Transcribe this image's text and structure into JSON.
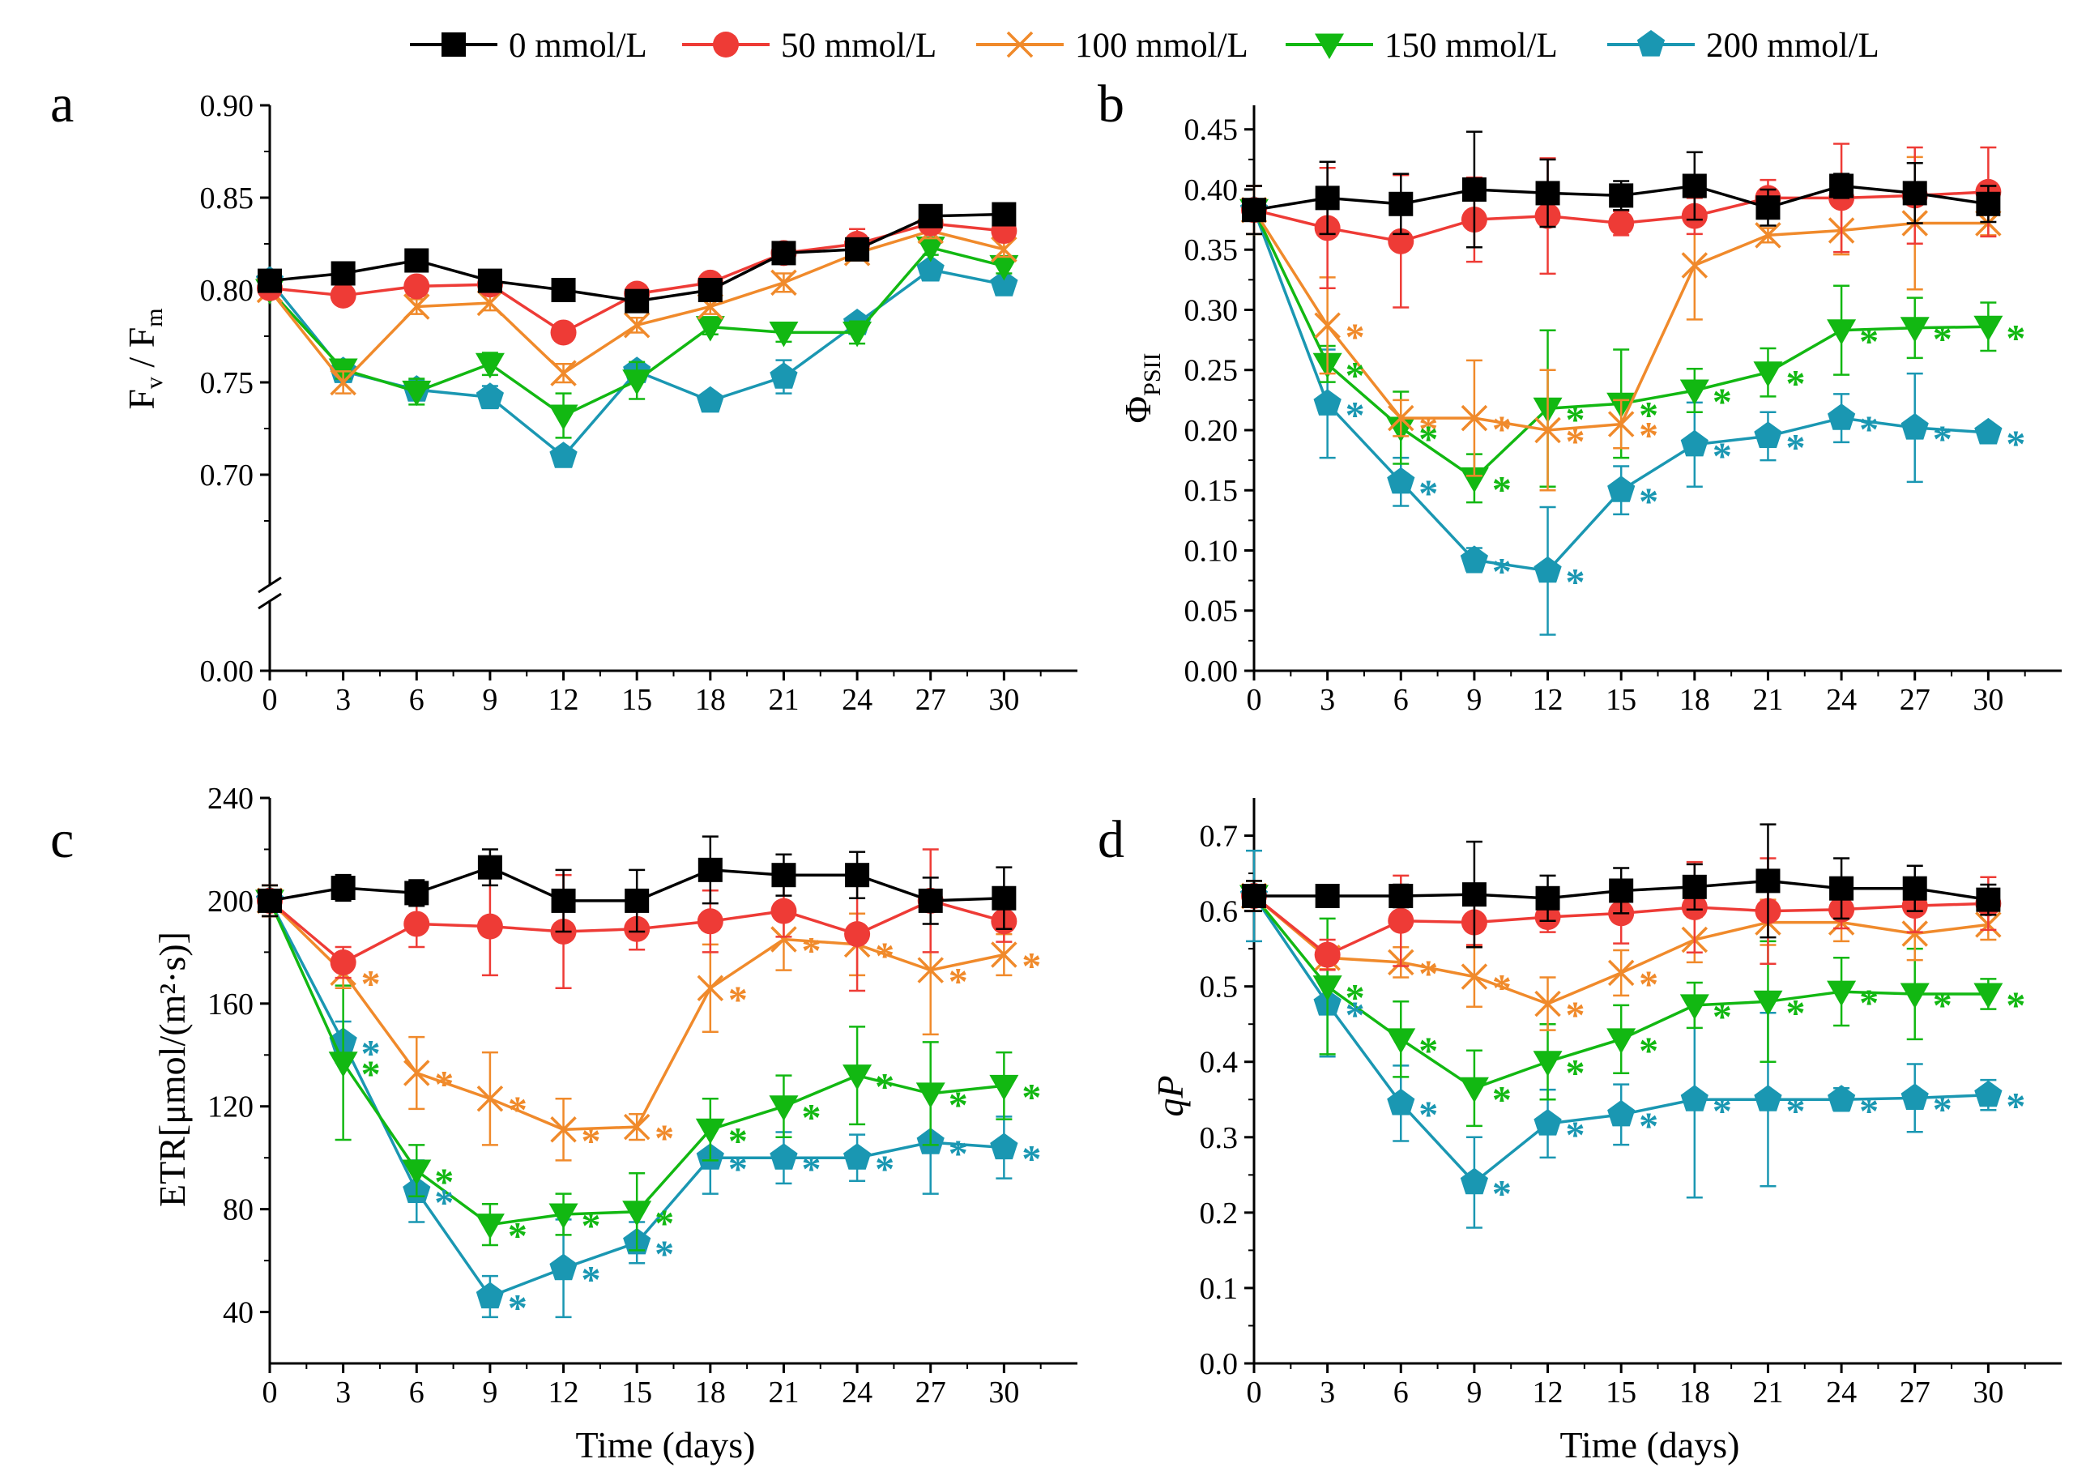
{
  "legend": [
    {
      "label": "0 mmol/L",
      "color": "#000000",
      "marker": "square"
    },
    {
      "label": "50 mmol/L",
      "color": "#ee3b36",
      "marker": "circle"
    },
    {
      "label": "100 mmol/L",
      "color": "#f08a2b",
      "marker": "cross"
    },
    {
      "label": "150 mmol/L",
      "color": "#12b812",
      "marker": "triangle-down"
    },
    {
      "label": "200 mmol/L",
      "color": "#1a97b2",
      "marker": "pentagon"
    }
  ],
  "chart_data": [
    {
      "panel": "a",
      "type": "line",
      "ylabel_main": "F",
      "ylabel_sub1": "v",
      "ylabel_mid": " / F",
      "ylabel_sub2": "m",
      "xlabel": "",
      "x": [
        0,
        3,
        6,
        9,
        12,
        15,
        18,
        21,
        24,
        27,
        30
      ],
      "ylim": [
        0.65,
        0.9
      ],
      "yticks": [
        "0.90",
        "0.85",
        "0.80",
        "0.75",
        "0.70"
      ],
      "ytick_values": [
        0.9,
        0.85,
        0.8,
        0.75,
        0.7
      ],
      "ybreak_label": "0.00",
      "xticks": [
        "0",
        "3",
        "6",
        "9",
        "12",
        "15",
        "18",
        "21",
        "24",
        "27",
        "30"
      ],
      "series": [
        {
          "name": "0 mmol/L",
          "values": [
            0.805,
            0.809,
            0.816,
            0.805,
            0.8,
            0.794,
            0.8,
            0.82,
            0.822,
            0.84,
            0.841
          ],
          "errors": [
            0.003,
            0.003,
            0.003,
            0.004,
            0.004,
            0.003,
            0.004,
            0.004,
            0.004,
            0.003,
            0.003
          ]
        },
        {
          "name": "50 mmol/L",
          "values": [
            0.801,
            0.797,
            0.802,
            0.803,
            0.777,
            0.798,
            0.804,
            0.82,
            0.825,
            0.836,
            0.832
          ],
          "errors": [
            0.003,
            0.004,
            0.004,
            0.004,
            0.004,
            0.004,
            0.004,
            0.004,
            0.008,
            0.004,
            0.004
          ]
        },
        {
          "name": "100 mmol/L",
          "values": [
            0.8,
            0.75,
            0.791,
            0.793,
            0.755,
            0.781,
            0.791,
            0.804,
            0.82,
            0.832,
            0.822
          ],
          "errors": [
            0.003,
            0.006,
            0.004,
            0.004,
            0.005,
            0.004,
            0.004,
            0.005,
            0.004,
            0.004,
            0.004
          ]
        },
        {
          "name": "150 mmol/L",
          "values": [
            0.8,
            0.757,
            0.745,
            0.76,
            0.732,
            0.751,
            0.78,
            0.777,
            0.777,
            0.823,
            0.813
          ],
          "errors": [
            0.003,
            0.005,
            0.007,
            0.006,
            0.012,
            0.01,
            0.004,
            0.005,
            0.006,
            0.004,
            0.004
          ]
        },
        {
          "name": "200 mmol/L",
          "values": [
            0.805,
            0.756,
            0.746,
            0.742,
            0.71,
            0.756,
            0.74,
            0.753,
            0.782,
            0.811,
            0.803
          ],
          "errors": [
            0.003,
            0.005,
            0.005,
            0.006,
            0.004,
            0.004,
            0.003,
            0.009,
            0.004,
            0.004,
            0.004
          ]
        }
      ],
      "significant": []
    },
    {
      "panel": "b",
      "type": "line",
      "ylabel_main": "Φ",
      "ylabel_sub1": "PSII",
      "xlabel": "",
      "x": [
        0,
        3,
        6,
        9,
        12,
        15,
        18,
        21,
        24,
        27,
        30
      ],
      "ylim": [
        0,
        0.47
      ],
      "yticks": [
        "0.00",
        "0.05",
        "0.10",
        "0.15",
        "0.20",
        "0.25",
        "0.30",
        "0.35",
        "0.40",
        "0.45"
      ],
      "ytick_values": [
        0.0,
        0.05,
        0.1,
        0.15,
        0.2,
        0.25,
        0.3,
        0.35,
        0.4,
        0.45
      ],
      "xticks": [
        "0",
        "3",
        "6",
        "9",
        "12",
        "15",
        "18",
        "21",
        "24",
        "27",
        "30"
      ],
      "series": [
        {
          "name": "0 mmol/L",
          "values": [
            0.383,
            0.393,
            0.388,
            0.4,
            0.397,
            0.395,
            0.403,
            0.385,
            0.403,
            0.397,
            0.388
          ],
          "errors": [
            0.02,
            0.03,
            0.025,
            0.048,
            0.028,
            0.012,
            0.028,
            0.015,
            0.01,
            0.025,
            0.015
          ]
        },
        {
          "name": "50 mmol/L",
          "values": [
            0.383,
            0.368,
            0.357,
            0.375,
            0.378,
            0.372,
            0.378,
            0.393,
            0.393,
            0.395,
            0.398
          ],
          "errors": [
            0.02,
            0.05,
            0.055,
            0.035,
            0.048,
            0.01,
            0.015,
            0.015,
            0.045,
            0.04,
            0.037
          ]
        },
        {
          "name": "100 mmol/L",
          "values": [
            0.383,
            0.287,
            0.21,
            0.21,
            0.2,
            0.205,
            0.337,
            0.362,
            0.366,
            0.372,
            0.372
          ],
          "errors": [
            0.02,
            0.04,
            0.015,
            0.048,
            0.05,
            0.02,
            0.045,
            0.006,
            0.02,
            0.055,
            0.01
          ]
        },
        {
          "name": "150 mmol/L",
          "values": [
            0.383,
            0.255,
            0.202,
            0.16,
            0.218,
            0.222,
            0.233,
            0.248,
            0.283,
            0.285,
            0.286
          ],
          "errors": [
            0.02,
            0.015,
            0.03,
            0.02,
            0.065,
            0.045,
            0.018,
            0.02,
            0.037,
            0.025,
            0.02
          ]
        },
        {
          "name": "200 mmol/L",
          "values": [
            0.383,
            0.222,
            0.157,
            0.092,
            0.083,
            0.15,
            0.188,
            0.195,
            0.21,
            0.202,
            0.198
          ],
          "errors": [
            0.02,
            0.045,
            0.02,
            0.01,
            0.053,
            0.02,
            0.035,
            0.02,
            0.02,
            0.045,
            0.005
          ]
        }
      ],
      "significant": [
        {
          "series": 2,
          "x": [
            3,
            6,
            9,
            12,
            15
          ]
        },
        {
          "series": 3,
          "x": [
            3,
            6,
            9,
            12,
            15,
            18,
            21,
            24,
            27,
            30
          ]
        },
        {
          "series": 4,
          "x": [
            3,
            6,
            9,
            12,
            15,
            18,
            21,
            24,
            27,
            30
          ]
        }
      ]
    },
    {
      "panel": "c",
      "type": "line",
      "ylabel_main": "ETR[μmol/(m²·s)]",
      "xlabel": "Time (days)",
      "x": [
        0,
        3,
        6,
        9,
        12,
        15,
        18,
        21,
        24,
        27,
        30
      ],
      "ylim": [
        20,
        240
      ],
      "yticks": [
        "40",
        "80",
        "120",
        "160",
        "200",
        "240"
      ],
      "ytick_values": [
        40,
        80,
        120,
        160,
        200,
        240
      ],
      "xticks": [
        "0",
        "3",
        "6",
        "9",
        "12",
        "15",
        "18",
        "21",
        "24",
        "27",
        "30"
      ],
      "series": [
        {
          "name": "0 mmol/L",
          "values": [
            200,
            205,
            203,
            213,
            200,
            200,
            212,
            210,
            210,
            200,
            201
          ],
          "errors": [
            6,
            5,
            5,
            7,
            12,
            12,
            13,
            8,
            9,
            9,
            12
          ]
        },
        {
          "name": "50 mmol/L",
          "values": [
            200,
            176,
            191,
            190,
            188,
            189,
            192,
            196,
            187,
            200,
            192
          ],
          "errors": [
            6,
            6,
            9,
            19,
            22,
            8,
            12,
            10,
            22,
            20,
            8
          ]
        },
        {
          "name": "100 mmol/L",
          "values": [
            200,
            172,
            133,
            123,
            111,
            112,
            166,
            185,
            183,
            173,
            179
          ],
          "errors": [
            6,
            6,
            14,
            18,
            12,
            5,
            17,
            12,
            12,
            25,
            8
          ]
        },
        {
          "name": "150 mmol/L",
          "values": [
            200,
            137,
            95,
            74,
            78,
            79,
            111,
            120,
            132,
            125,
            128
          ],
          "errors": [
            6,
            30,
            10,
            8,
            8,
            15,
            12,
            12,
            19,
            20,
            13
          ]
        },
        {
          "name": "200 mmol/L",
          "values": [
            200,
            145,
            87,
            46,
            57,
            67,
            100,
            100,
            100,
            106,
            104
          ],
          "errors": [
            6,
            8,
            12,
            8,
            19,
            8,
            14,
            10,
            9,
            20,
            12
          ]
        }
      ],
      "significant": [
        {
          "series": 2,
          "x": [
            3,
            6,
            9,
            12,
            15,
            18,
            21,
            24,
            27,
            30
          ]
        },
        {
          "series": 3,
          "x": [
            3,
            6,
            9,
            12,
            15,
            18,
            21,
            24,
            27,
            30
          ]
        },
        {
          "series": 4,
          "x": [
            3,
            6,
            9,
            12,
            15,
            18,
            21,
            24,
            27,
            30
          ]
        }
      ]
    },
    {
      "panel": "d",
      "type": "line",
      "ylabel_main": "qP",
      "xlabel": "Time (days)",
      "x": [
        0,
        3,
        6,
        9,
        12,
        15,
        18,
        21,
        24,
        27,
        30
      ],
      "ylim": [
        0,
        0.75
      ],
      "yticks": [
        "0.0",
        "0.1",
        "0.2",
        "0.3",
        "0.4",
        "0.5",
        "0.6",
        "0.7"
      ],
      "ytick_values": [
        0.0,
        0.1,
        0.2,
        0.3,
        0.4,
        0.5,
        0.6,
        0.7
      ],
      "xticks": [
        "0",
        "3",
        "6",
        "9",
        "12",
        "15",
        "18",
        "21",
        "24",
        "27",
        "30"
      ],
      "series": [
        {
          "name": "0 mmol/L",
          "values": [
            0.62,
            0.62,
            0.62,
            0.622,
            0.617,
            0.627,
            0.632,
            0.64,
            0.63,
            0.63,
            0.615
          ],
          "errors": [
            0.02,
            0.01,
            0.015,
            0.07,
            0.03,
            0.03,
            0.03,
            0.075,
            0.04,
            0.03,
            0.02
          ]
        },
        {
          "name": "50 mmol/L",
          "values": [
            0.62,
            0.542,
            0.587,
            0.585,
            0.592,
            0.597,
            0.605,
            0.6,
            0.602,
            0.607,
            0.61
          ],
          "errors": [
            0.02,
            0.02,
            0.06,
            0.03,
            0.02,
            0.04,
            0.06,
            0.07,
            0.025,
            0.035,
            0.035
          ]
        },
        {
          "name": "100 mmol/L",
          "values": [
            0.62,
            0.538,
            0.532,
            0.513,
            0.477,
            0.518,
            0.562,
            0.585,
            0.585,
            0.57,
            0.582
          ],
          "errors": [
            0.02,
            0.015,
            0.02,
            0.04,
            0.035,
            0.03,
            0.03,
            0.03,
            0.025,
            0.035,
            0.02
          ]
        },
        {
          "name": "150 mmol/L",
          "values": [
            0.62,
            0.5,
            0.43,
            0.365,
            0.4,
            0.43,
            0.475,
            0.48,
            0.493,
            0.49,
            0.49
          ],
          "errors": [
            0.02,
            0.09,
            0.05,
            0.05,
            0.05,
            0.045,
            0.03,
            0.08,
            0.045,
            0.06,
            0.02
          ]
        },
        {
          "name": "200 mmol/L",
          "values": [
            0.62,
            0.477,
            0.345,
            0.24,
            0.318,
            0.33,
            0.35,
            0.35,
            0.35,
            0.352,
            0.356
          ],
          "errors": [
            0.06,
            0.07,
            0.05,
            0.06,
            0.045,
            0.04,
            0.13,
            0.115,
            0.015,
            0.045,
            0.02
          ]
        }
      ],
      "significant": [
        {
          "series": 2,
          "x": [
            6,
            9,
            12,
            15
          ]
        },
        {
          "series": 3,
          "x": [
            3,
            6,
            9,
            12,
            15,
            18,
            21,
            24,
            27,
            30
          ]
        },
        {
          "series": 4,
          "x": [
            3,
            6,
            9,
            12,
            15,
            18,
            21,
            24,
            27,
            30
          ]
        }
      ]
    }
  ]
}
